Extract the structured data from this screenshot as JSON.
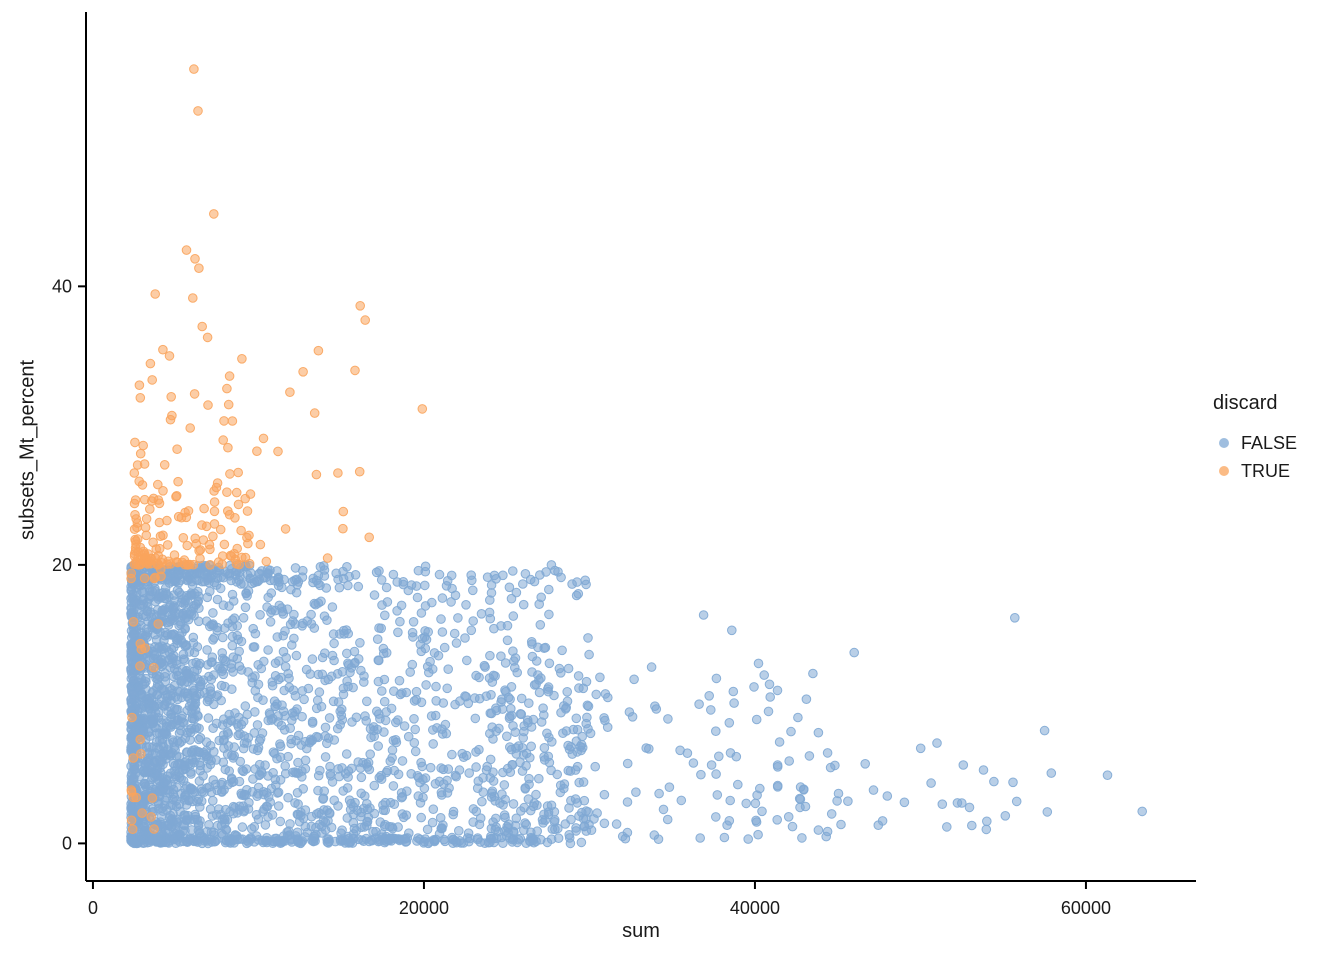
{
  "figure": {
    "background": "#ffffff",
    "text_color": "#1a1a1a",
    "axis_color": "#000000"
  },
  "chart_data": {
    "type": "scatter",
    "title": "",
    "xlabel": "sum",
    "ylabel": "subsets_Mt_percent",
    "xlim": [
      -420,
      66650
    ],
    "ylim": [
      -2.7,
      59.7
    ],
    "grid": "off",
    "x_ticks": [
      {
        "value": 0,
        "label": "0"
      },
      {
        "value": 20000,
        "label": "20000"
      },
      {
        "value": 40000,
        "label": "40000"
      },
      {
        "value": 60000,
        "label": "60000"
      }
    ],
    "y_ticks": [
      {
        "value": 0,
        "label": "0"
      },
      {
        "value": 20,
        "label": "20"
      },
      {
        "value": 40,
        "label": "40"
      }
    ],
    "legend": {
      "title": "discard",
      "position": "right",
      "entries": [
        {
          "label": "FALSE",
          "color": "#7fa8d4"
        },
        {
          "label": "TRUE",
          "color": "#f9a45c"
        }
      ]
    },
    "point_style": {
      "radius": 4.3,
      "fill_opacity": 0.55,
      "stroke_opacity": 0.9
    },
    "series": [
      {
        "name": "FALSE",
        "color": "#7fa8d4",
        "description": "cells kept: sum mostly 2300-30000, Mt percent 0-20, long sparse tail to 64000 at low percent",
        "clusters": [
          {
            "count": 1700,
            "x": {
              "min": 2300,
              "max": 30000,
              "pow": 1.9
            },
            "y": {
              "min": 0,
              "max": 19.6,
              "pow": 1.25
            }
          },
          {
            "count": 450,
            "x": {
              "min": 2300,
              "max": 6500,
              "pow": 1.2
            },
            "y": {
              "min": 0,
              "max": 20,
              "pow": 1.0
            }
          },
          {
            "count": 180,
            "x": {
              "min": 24000,
              "max": 45000,
              "pow": 1.5
            },
            "y": {
              "min": 0.3,
              "max": 13,
              "pow": 1.4
            }
          },
          {
            "count": 40,
            "x": {
              "min": 40000,
              "max": 58000,
              "pow": 1.3
            },
            "y": {
              "min": 1,
              "max": 9,
              "pow": 1.3
            }
          },
          {
            "count": 160,
            "x": {
              "min": 2300,
              "max": 27000,
              "pow": 1.5
            },
            "y": {
              "min": 0,
              "max": 0.4,
              "pow": 1.0
            }
          },
          {
            "count": 140,
            "x": {
              "min": 2300,
              "max": 15500,
              "pow": 1.4
            },
            "y": {
              "min": 18.7,
              "max": 20,
              "pow": 1.0
            }
          }
        ]
      },
      {
        "name": "TRUE",
        "color": "#f9a45c",
        "description": "discarded cells: mostly sum 2500-17000 with Mt percent above 20 (dense band 20-26), plus low-sum cells below 20 percent",
        "clusters": [
          {
            "count": 120,
            "x": {
              "min": 2500,
              "max": 9500,
              "pow": 1.6
            },
            "y": {
              "min": 20,
              "max": 26,
              "pow": 2.2
            }
          },
          {
            "count": 55,
            "x": {
              "min": 2500,
              "max": 17000,
              "pow": 1.8
            },
            "y": {
              "min": 20,
              "max": 40,
              "pow": 2.0
            }
          },
          {
            "count": 12,
            "x": {
              "min": 4500,
              "max": 9500,
              "pow": 1.0
            },
            "y": {
              "min": 26,
              "max": 42,
              "pow": 1.2
            }
          },
          {
            "count": 28,
            "x": {
              "min": 2300,
              "max": 4300,
              "pow": 1.3
            },
            "y": {
              "min": 0.5,
              "max": 20,
              "pow": 1.0
            }
          }
        ]
      }
    ],
    "notable_points": [
      {
        "series": "TRUE",
        "x": 6100,
        "y": 55.6
      },
      {
        "series": "TRUE",
        "x": 6350,
        "y": 52.6
      },
      {
        "series": "TRUE",
        "x": 7300,
        "y": 45.2
      },
      {
        "series": "TRUE",
        "x": 5650,
        "y": 42.6
      },
      {
        "series": "TRUE",
        "x": 6400,
        "y": 41.3
      },
      {
        "series": "TRUE",
        "x": 16150,
        "y": 38.6
      },
      {
        "series": "TRUE",
        "x": 11900,
        "y": 32.4
      },
      {
        "series": "TRUE",
        "x": 19900,
        "y": 31.2
      },
      {
        "series": "TRUE",
        "x": 9000,
        "y": 34.8
      },
      {
        "series": "TRUE",
        "x": 13400,
        "y": 30.9
      },
      {
        "series": "TRUE",
        "x": 14800,
        "y": 26.6
      },
      {
        "series": "TRUE",
        "x": 15100,
        "y": 22.6
      },
      {
        "series": "FALSE",
        "x": 63400,
        "y": 2.3
      },
      {
        "series": "FALSE",
        "x": 55700,
        "y": 16.2
      },
      {
        "series": "FALSE",
        "x": 57500,
        "y": 8.1
      },
      {
        "series": "FALSE",
        "x": 61300,
        "y": 4.9
      },
      {
        "series": "FALSE",
        "x": 51000,
        "y": 7.2
      },
      {
        "series": "FALSE",
        "x": 48000,
        "y": 3.4
      },
      {
        "series": "FALSE",
        "x": 52500,
        "y": 2.9
      },
      {
        "series": "FALSE",
        "x": 46000,
        "y": 13.7
      },
      {
        "series": "FALSE",
        "x": 43500,
        "y": 12.2
      },
      {
        "series": "FALSE",
        "x": 27700,
        "y": 20.0
      },
      {
        "series": "FALSE",
        "x": 29800,
        "y": 18.6
      },
      {
        "series": "FALSE",
        "x": 20100,
        "y": 19.9
      },
      {
        "series": "FALSE",
        "x": 21700,
        "y": 18.3
      },
      {
        "series": "FALSE",
        "x": 36900,
        "y": 16.4
      },
      {
        "series": "FALSE",
        "x": 38600,
        "y": 15.3
      }
    ]
  }
}
